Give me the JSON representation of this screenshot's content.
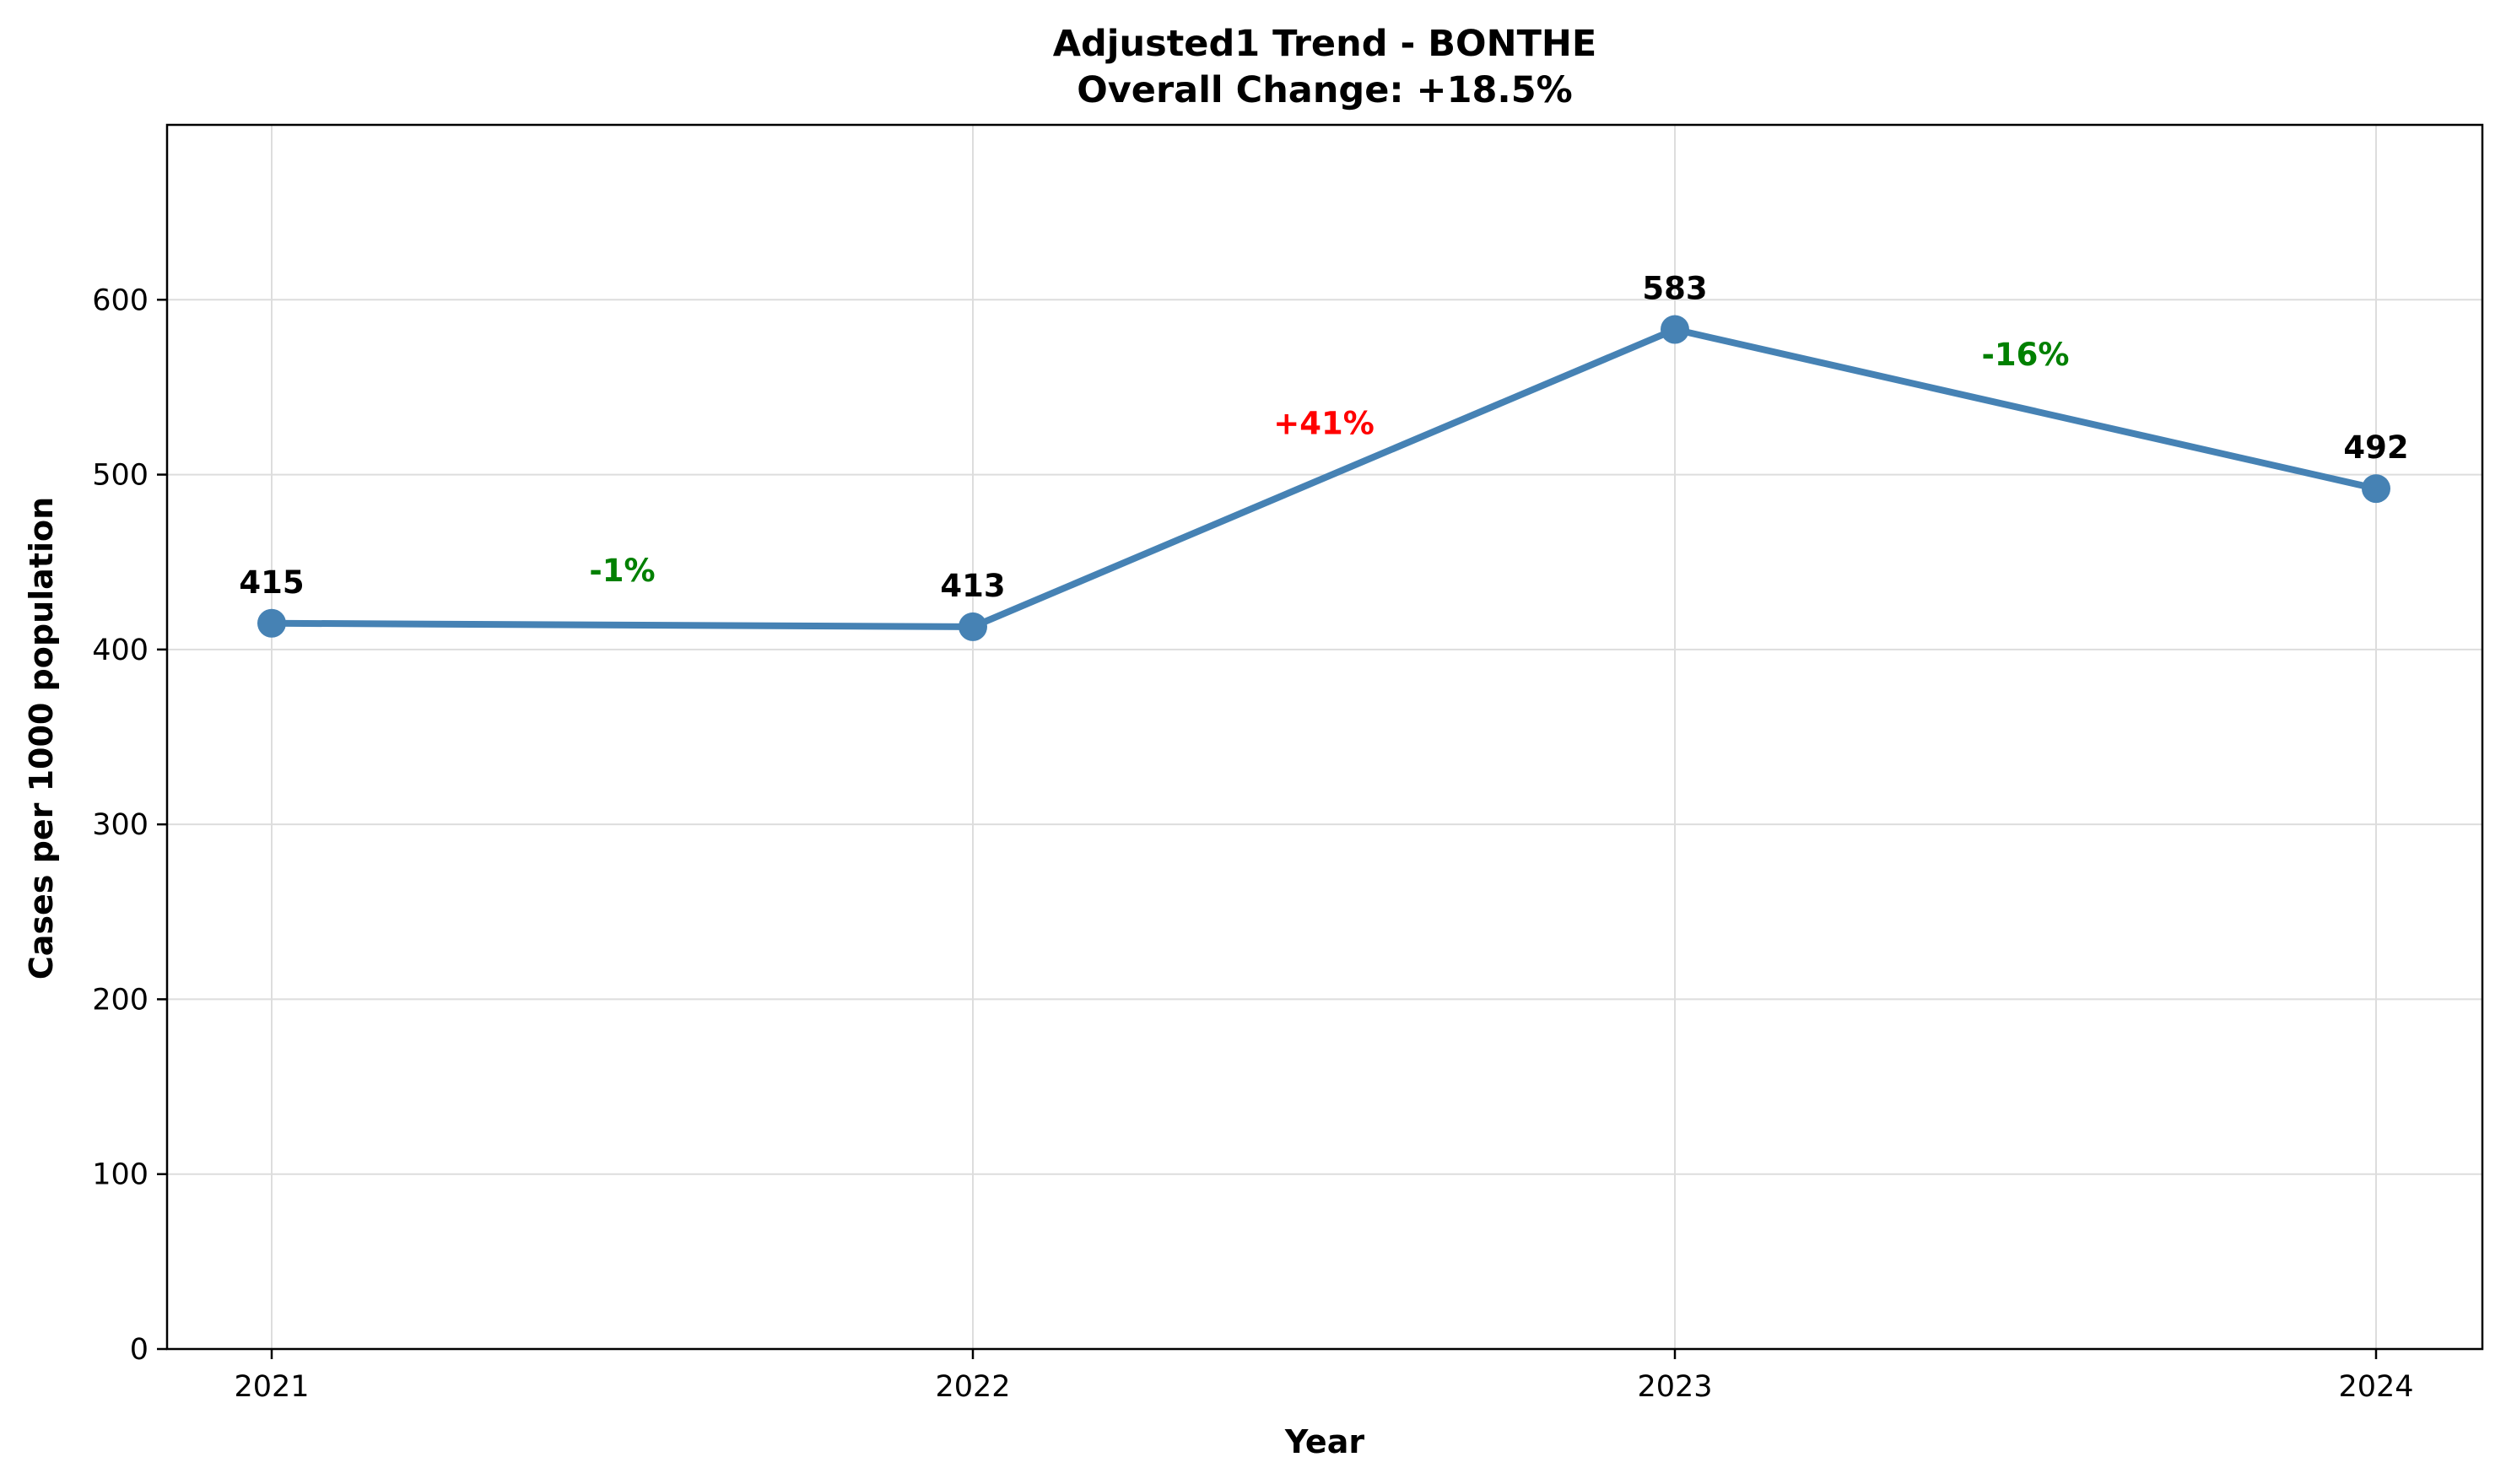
{
  "chart_data": {
    "type": "line",
    "title": "Adjusted1 Trend - BONTHE",
    "subtitle": "Overall Change: +18.5%",
    "xlabel": "Year",
    "ylabel": "Cases per 1000 population",
    "categories": [
      "2021",
      "2022",
      "2023",
      "2024"
    ],
    "values": [
      415,
      413,
      583,
      492
    ],
    "data_labels": [
      "415",
      "413",
      "583",
      "492"
    ],
    "changes": [
      {
        "label": "-1%",
        "color": "#008000"
      },
      {
        "label": "+41%",
        "color": "#ff0000"
      },
      {
        "label": "-16%",
        "color": "#008000"
      }
    ],
    "ylim": [
      0,
      700
    ],
    "yticks": [
      0,
      100,
      200,
      300,
      400,
      500,
      600
    ],
    "grid": true,
    "line_color": "#4682b4"
  }
}
